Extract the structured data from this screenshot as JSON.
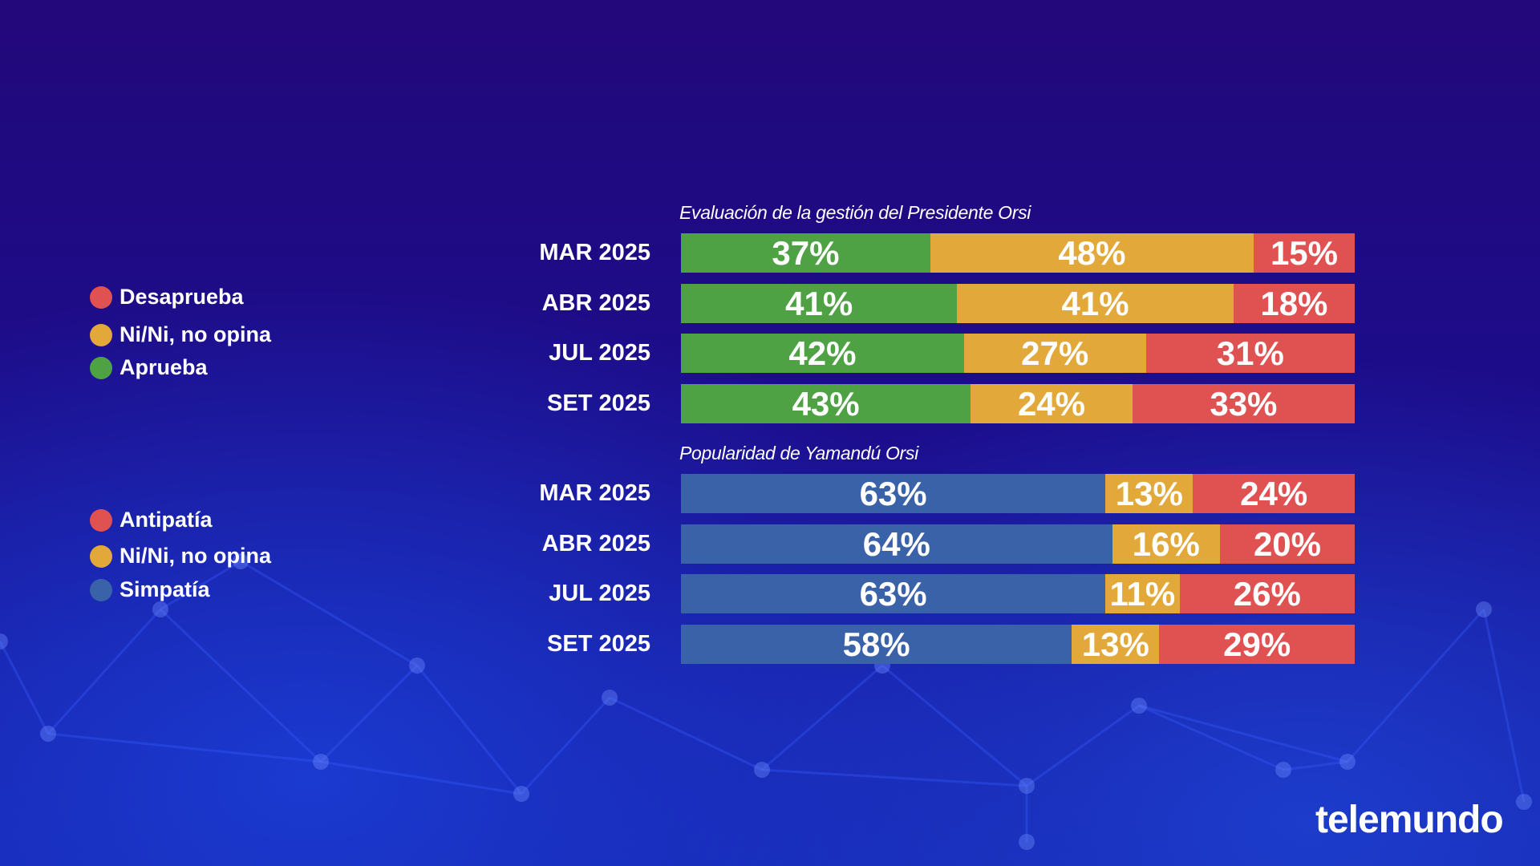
{
  "colors": {
    "green": "#4fa244",
    "orange": "#e2a83a",
    "red": "#e05252",
    "blue": "#3a62a8"
  },
  "logo": "telemundo",
  "chart_data": [
    {
      "type": "bar",
      "orientation": "horizontal",
      "stacked": true,
      "normalized": true,
      "title": "Evaluación de la gestión del Presidente Orsi",
      "categories": [
        "MAR 2025",
        "ABR 2025",
        "JUL 2025",
        "SET 2025"
      ],
      "series": [
        {
          "name": "Aprueba",
          "color": "#4fa244",
          "values": [
            37,
            41,
            42,
            43
          ]
        },
        {
          "name": "Ni/Ni, no opina",
          "color": "#e2a83a",
          "values": [
            48,
            41,
            27,
            24
          ]
        },
        {
          "name": "Desaprueba",
          "color": "#e05252",
          "values": [
            15,
            18,
            31,
            33
          ]
        }
      ],
      "legend": {
        "placement": "left",
        "items": [
          "Desaprueba",
          "Ni/Ni, no opina",
          "Aprueba"
        ]
      }
    },
    {
      "type": "bar",
      "orientation": "horizontal",
      "stacked": true,
      "normalized": true,
      "title": "Popularidad de Yamandú Orsi",
      "categories": [
        "MAR 2025",
        "ABR 2025",
        "JUL 2025",
        "SET 2025"
      ],
      "series": [
        {
          "name": "Simpatía",
          "color": "#3a62a8",
          "values": [
            63,
            64,
            63,
            58
          ]
        },
        {
          "name": "Ni/Ni, no opina",
          "color": "#e2a83a",
          "values": [
            13,
            16,
            11,
            13
          ]
        },
        {
          "name": "Antipatía",
          "color": "#e05252",
          "values": [
            24,
            20,
            26,
            29
          ]
        }
      ],
      "legend": {
        "placement": "left",
        "items": [
          "Antipatía",
          "Ni/Ni, no opina",
          "Simpatía"
        ]
      }
    }
  ]
}
